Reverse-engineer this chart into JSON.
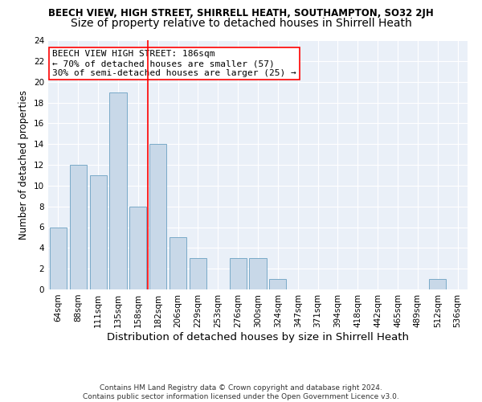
{
  "title1": "BEECH VIEW, HIGH STREET, SHIRRELL HEATH, SOUTHAMPTON, SO32 2JH",
  "title2": "Size of property relative to detached houses in Shirrell Heath",
  "xlabel": "Distribution of detached houses by size in Shirrell Heath",
  "ylabel": "Number of detached properties",
  "categories": [
    "64sqm",
    "88sqm",
    "111sqm",
    "135sqm",
    "158sqm",
    "182sqm",
    "206sqm",
    "229sqm",
    "253sqm",
    "276sqm",
    "300sqm",
    "324sqm",
    "347sqm",
    "371sqm",
    "394sqm",
    "418sqm",
    "442sqm",
    "465sqm",
    "489sqm",
    "512sqm",
    "536sqm"
  ],
  "values": [
    6,
    12,
    11,
    19,
    8,
    14,
    5,
    3,
    0,
    3,
    3,
    1,
    0,
    0,
    0,
    0,
    0,
    0,
    0,
    1,
    0
  ],
  "bar_color": "#c8d8e8",
  "bar_edge_color": "#7aaac8",
  "vline_color": "red",
  "annotation_text": "BEECH VIEW HIGH STREET: 186sqm\n← 70% of detached houses are smaller (57)\n30% of semi-detached houses are larger (25) →",
  "annotation_box_color": "white",
  "annotation_box_edge": "red",
  "ylim": [
    0,
    24
  ],
  "yticks": [
    0,
    2,
    4,
    6,
    8,
    10,
    12,
    14,
    16,
    18,
    20,
    22,
    24
  ],
  "bg_color": "#eaf0f8",
  "grid_color": "white",
  "footer": "Contains HM Land Registry data © Crown copyright and database right 2024.\nContains public sector information licensed under the Open Government Licence v3.0.",
  "title1_fontsize": 8.5,
  "title2_fontsize": 10,
  "xlabel_fontsize": 9.5,
  "ylabel_fontsize": 8.5,
  "tick_fontsize": 7.5,
  "annotation_fontsize": 8,
  "footer_fontsize": 6.5
}
